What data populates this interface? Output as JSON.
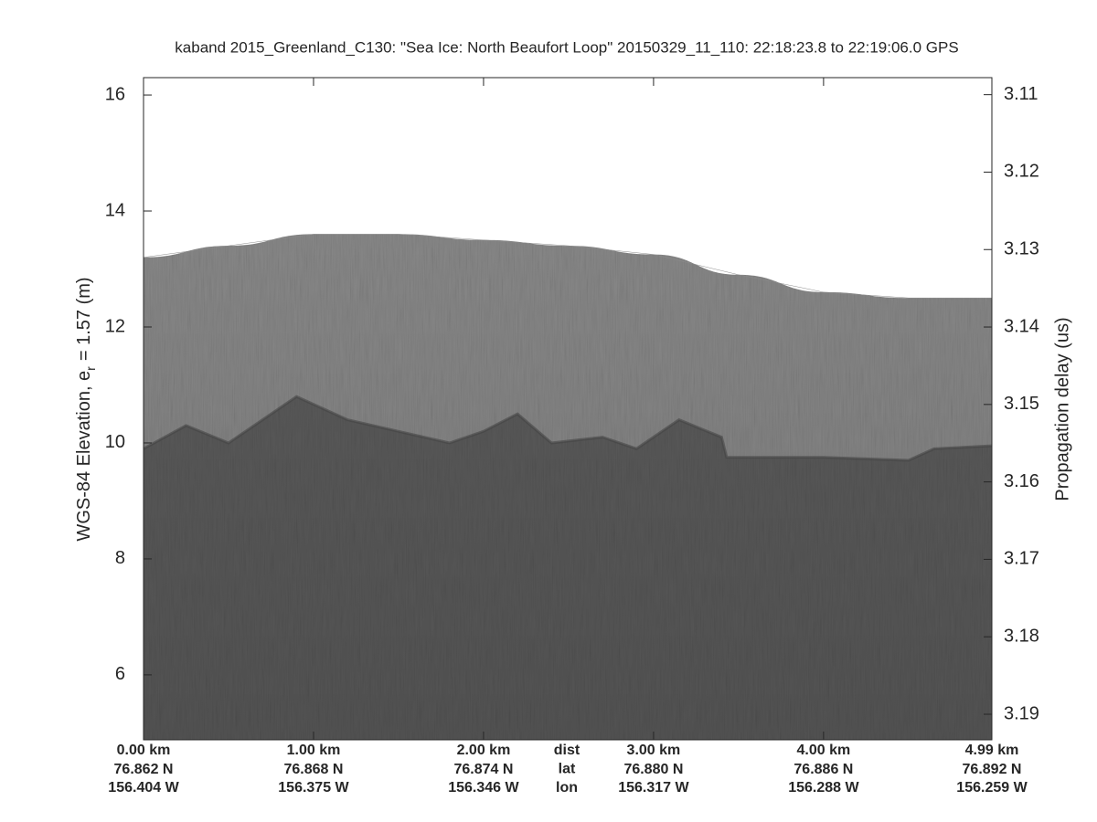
{
  "chart_data": {
    "type": "echogram",
    "title": "kaband 2015_Greenland_C130: \"Sea Ice: North Beaufort Loop\"  20150329_11_110: 22:18:23.8 to 22:19:06.0 GPS",
    "ylabel_parts": [
      "WGS-84 Elevation, e",
      "r",
      "= 1.57 (m)"
    ],
    "y2label": "Propagation delay (us)",
    "xlim": [
      0,
      4.99
    ],
    "xticks": [
      {
        "value": 0,
        "label": "0.00 km"
      },
      {
        "value": 1,
        "label": "1.00 km"
      },
      {
        "value": 2,
        "label": "2.00 km"
      },
      {
        "value": 3,
        "label": "3.00 km"
      },
      {
        "value": 4,
        "label": "4.00 km"
      },
      {
        "value": 4.99,
        "label": "4.99 km"
      }
    ],
    "x_lat_labels": [
      "76.862 N",
      "76.868 N",
      "76.874 N",
      "76.880 N",
      "76.886 N",
      "76.892 N"
    ],
    "x_lon_labels": [
      "156.404 W",
      "156.375 W",
      "156.346 W",
      "156.317 W",
      "156.288 W",
      "156.259 W"
    ],
    "x_row_names": [
      "dist",
      "lat",
      "lon"
    ],
    "ylim": [
      4.88,
      16.3
    ],
    "yticks": [
      6,
      8,
      10,
      12,
      14,
      16
    ],
    "y2lim": [
      3.1933,
      3.1078
    ],
    "y2ticks": [
      3.11,
      3.12,
      3.13,
      3.14,
      3.15,
      3.16,
      3.17,
      3.18,
      3.19
    ],
    "surface": {
      "x": [
        0,
        0.5,
        1.0,
        1.5,
        2.0,
        2.5,
        3.0,
        3.5,
        4.0,
        4.5,
        4.99
      ],
      "values": [
        13.2,
        13.4,
        13.6,
        13.6,
        13.5,
        13.4,
        13.25,
        12.9,
        12.6,
        12.5,
        12.5
      ]
    },
    "interface": {
      "x": [
        0,
        0.25,
        0.5,
        0.7,
        0.9,
        1.2,
        1.5,
        1.8,
        2.0,
        2.2,
        2.4,
        2.7,
        2.9,
        3.15,
        3.4,
        3.43,
        4.0,
        4.5,
        4.65,
        4.99
      ],
      "values": [
        9.9,
        10.3,
        10.0,
        10.4,
        10.8,
        10.4,
        10.2,
        10.0,
        10.2,
        10.5,
        10.0,
        10.1,
        9.9,
        10.4,
        10.1,
        9.75,
        9.75,
        9.7,
        9.9,
        9.95
      ]
    }
  }
}
